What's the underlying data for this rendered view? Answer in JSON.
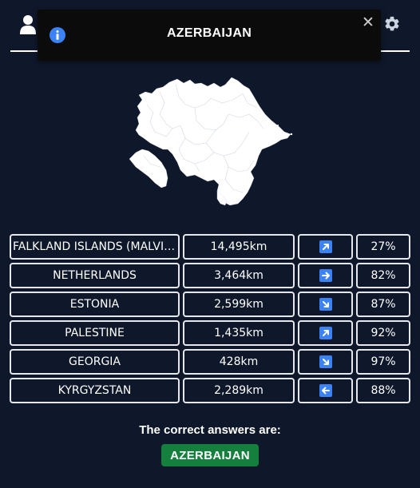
{
  "toast": {
    "title": "AZERBAIJAN",
    "close_label": "✕"
  },
  "map": {
    "country": "Azerbaijan",
    "fill_color": "#ffffff"
  },
  "guesses": [
    {
      "country": "FALKLAND ISLANDS (MALVINAS)",
      "distance": "14,495km",
      "direction": "northeast",
      "percent": "27%"
    },
    {
      "country": "NETHERLANDS",
      "distance": "3,464km",
      "direction": "east",
      "percent": "82%"
    },
    {
      "country": "ESTONIA",
      "distance": "2,599km",
      "direction": "southeast",
      "percent": "87%"
    },
    {
      "country": "PALESTINE",
      "distance": "1,435km",
      "direction": "northeast",
      "percent": "92%"
    },
    {
      "country": "GEORGIA",
      "distance": "428km",
      "direction": "southeast",
      "percent": "97%"
    },
    {
      "country": "KYRGYZSTAN",
      "distance": "2,289km",
      "direction": "west",
      "percent": "88%"
    }
  ],
  "answers": {
    "label": "The correct answers are:",
    "values": [
      "AZERBAIJAN"
    ]
  },
  "icons": {
    "header_left": "user-icon",
    "header_right": "gear-icon",
    "toast": "info-icon"
  },
  "colors": {
    "background": "#0f172a",
    "arrow": "#3b82f6",
    "answer": "#15803d",
    "info": "#3b82f6"
  }
}
